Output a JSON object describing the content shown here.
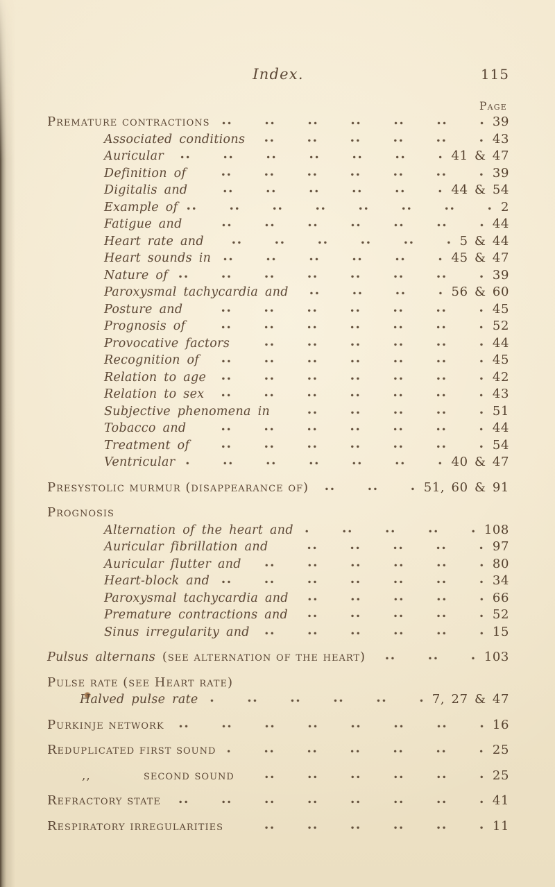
{
  "header": {
    "title": "Index.",
    "page_number": "115",
    "column_label": "Page"
  },
  "sections": [
    {
      "entries": [
        {
          "style": "main",
          "label": "Premature contractions",
          "pages": "39"
        },
        {
          "style": "sub",
          "label": "Associated conditions",
          "pages": "43"
        },
        {
          "style": "sub",
          "label": "Auricular",
          "pages": "41 & 47"
        },
        {
          "style": "sub",
          "label": "Definition of",
          "pages": "39"
        },
        {
          "style": "sub",
          "label": "Digitalis and",
          "pages": "44 & 54"
        },
        {
          "style": "sub",
          "label": "Example of",
          "pages": "2"
        },
        {
          "style": "sub",
          "label": "Fatigue and",
          "pages": "44"
        },
        {
          "style": "sub",
          "label": "Heart rate and",
          "pages": "5 & 44"
        },
        {
          "style": "sub",
          "label": "Heart sounds in",
          "pages": "45 & 47"
        },
        {
          "style": "sub",
          "label": "Nature of",
          "pages": "39"
        },
        {
          "style": "sub",
          "label": "Paroxysmal tachycardia and",
          "pages": "56 & 60"
        },
        {
          "style": "sub",
          "label": "Posture and",
          "pages": "45"
        },
        {
          "style": "sub",
          "label": "Prognosis of",
          "pages": "52"
        },
        {
          "style": "sub",
          "label": "Provocative factors",
          "pages": "44"
        },
        {
          "style": "sub",
          "label": "Recognition of",
          "pages": "45"
        },
        {
          "style": "sub",
          "label": "Relation to age",
          "pages": "42"
        },
        {
          "style": "sub",
          "label": "Relation to sex",
          "pages": "43"
        },
        {
          "style": "sub",
          "label": "Subjective phenomena in",
          "pages": "51"
        },
        {
          "style": "sub",
          "label": "Tobacco and",
          "pages": "44"
        },
        {
          "style": "sub",
          "label": "Treatment of",
          "pages": "54"
        },
        {
          "style": "sub",
          "label": "Ventricular",
          "pages": "40 & 47"
        }
      ]
    },
    {
      "entries": [
        {
          "style": "main",
          "label": "Presystolic murmur (disappearance of)",
          "pages": "51, 60 & 91"
        }
      ]
    },
    {
      "entries": [
        {
          "style": "main",
          "label": "Prognosis",
          "pages": ""
        },
        {
          "style": "sub",
          "label": "Alternation of the heart and",
          "pages": "108"
        },
        {
          "style": "sub",
          "label": "Auricular fibrillation and",
          "pages": "97"
        },
        {
          "style": "sub",
          "label": "Auricular flutter and",
          "pages": "80"
        },
        {
          "style": "sub",
          "label": "Heart-block and",
          "pages": "34"
        },
        {
          "style": "sub",
          "label": "Paroxysmal tachycardia and",
          "pages": "66"
        },
        {
          "style": "sub",
          "label": "Premature contractions and",
          "pages": "52"
        },
        {
          "style": "sub",
          "label": "Sinus irregularity and",
          "pages": "15"
        }
      ]
    },
    {
      "entries": [
        {
          "style": "mixed",
          "label_italic": "Pulsus alternans",
          "label_caps": "(see alternation of the heart)",
          "pages": "103"
        }
      ]
    },
    {
      "entries": [
        {
          "style": "main",
          "label": "Pulse rate (see Heart rate)",
          "pages": ""
        },
        {
          "style": "sub-shallow",
          "label": "Halved pulse rate",
          "pages": "7, 27 & 47"
        }
      ]
    },
    {
      "entries": [
        {
          "style": "main",
          "label": "Purkinje network",
          "pages": "16"
        }
      ]
    },
    {
      "entries": [
        {
          "style": "main",
          "label": "Reduplicated first sound",
          "pages": "25"
        }
      ]
    },
    {
      "entries": [
        {
          "style": "ditto",
          "ditto_mark": ",,",
          "label": "second sound",
          "pages": "25"
        }
      ]
    },
    {
      "entries": [
        {
          "style": "main",
          "label": "Refractory state",
          "pages": "41"
        }
      ]
    },
    {
      "entries": [
        {
          "style": "main",
          "label": "Respiratory irregularities",
          "pages": "11"
        }
      ]
    }
  ]
}
